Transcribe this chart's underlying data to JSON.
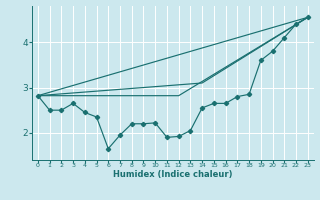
{
  "xlabel": "Humidex (Indice chaleur)",
  "xlim": [
    -0.5,
    23.5
  ],
  "ylim": [
    1.4,
    4.8
  ],
  "yticks": [
    2,
    3,
    4
  ],
  "xticks": [
    0,
    1,
    2,
    3,
    4,
    5,
    6,
    7,
    8,
    9,
    10,
    11,
    12,
    13,
    14,
    15,
    16,
    17,
    18,
    19,
    20,
    21,
    22,
    23
  ],
  "bg_color": "#cce8ee",
  "line_color": "#1a7070",
  "grid_color": "#ffffff",
  "line1_x": [
    0,
    1,
    2,
    3,
    4,
    5,
    6,
    7,
    8,
    9,
    10,
    11,
    12,
    13,
    14,
    15,
    16,
    17,
    18,
    19,
    20,
    21,
    22,
    23
  ],
  "line1_y": [
    2.82,
    2.5,
    2.5,
    2.65,
    2.45,
    2.35,
    1.65,
    1.95,
    2.2,
    2.2,
    2.22,
    1.9,
    1.92,
    2.05,
    2.55,
    2.65,
    2.65,
    2.8,
    2.85,
    3.6,
    3.8,
    4.1,
    4.4,
    4.55
  ],
  "line2_x": [
    0,
    23
  ],
  "line2_y": [
    2.82,
    4.55
  ],
  "line3_x": [
    0,
    14,
    23
  ],
  "line3_y": [
    2.82,
    3.1,
    4.55
  ],
  "line4_x": [
    0,
    12,
    23
  ],
  "line4_y": [
    2.82,
    2.82,
    4.55
  ]
}
